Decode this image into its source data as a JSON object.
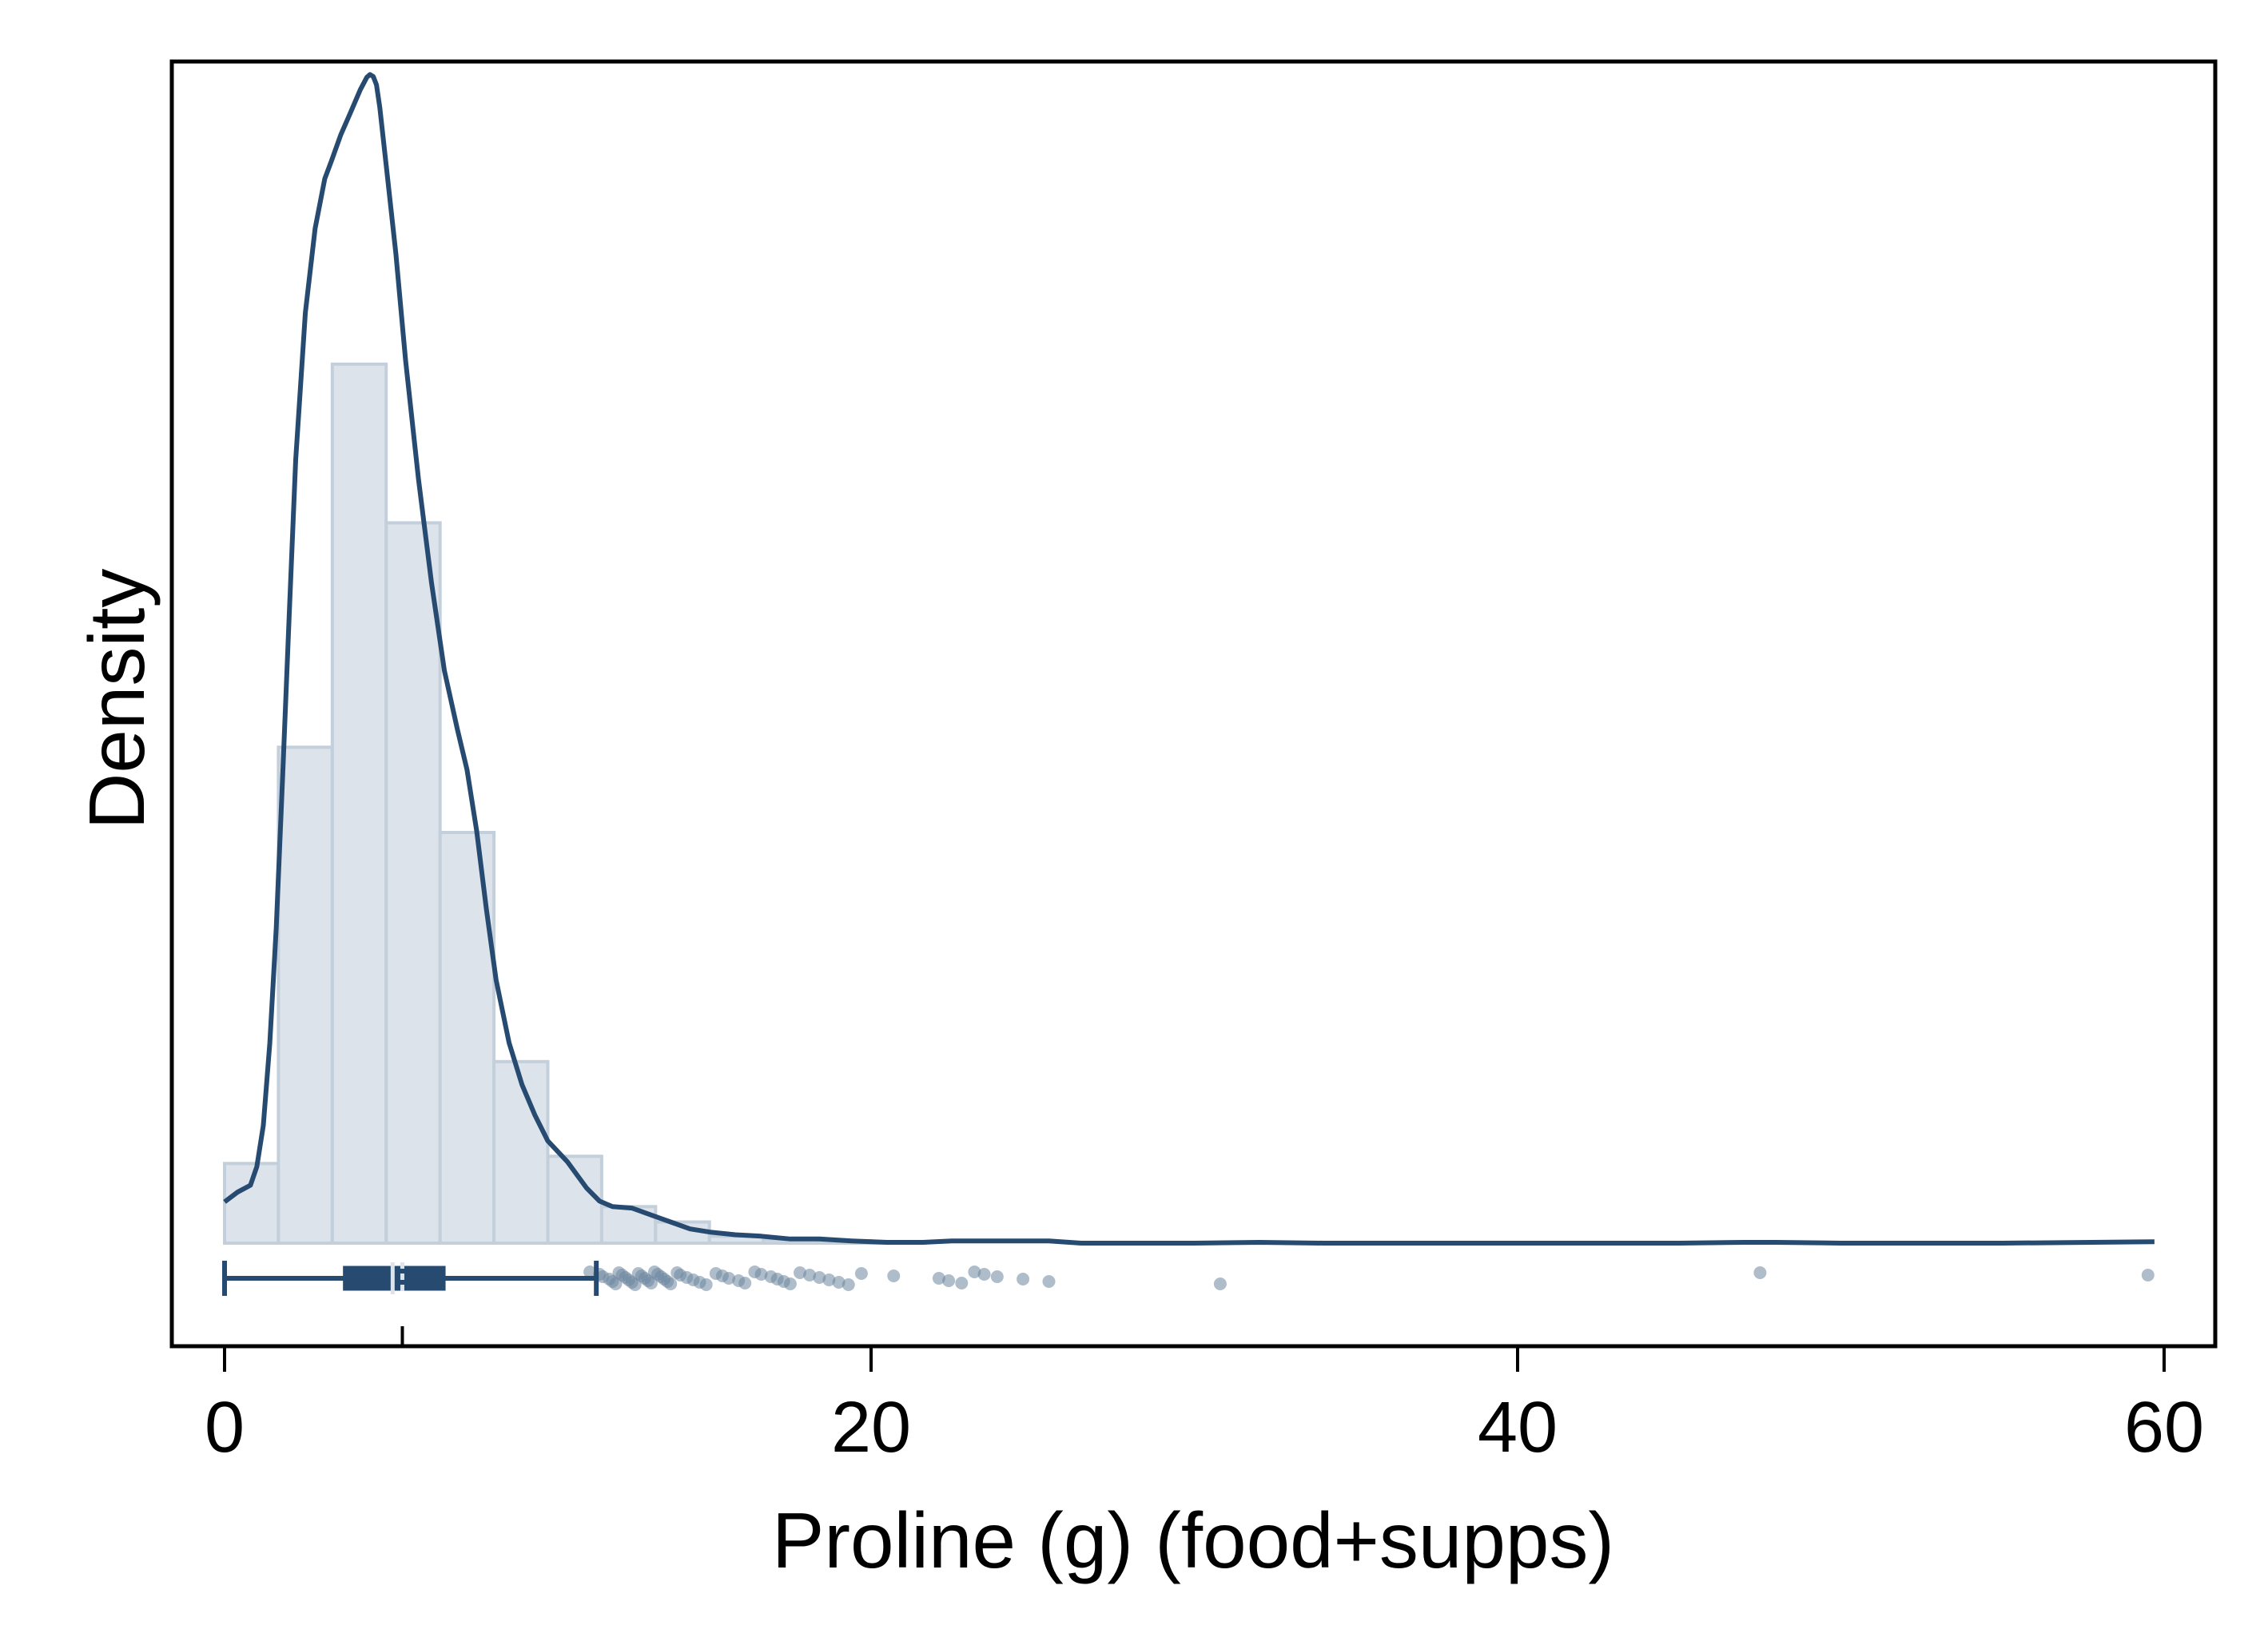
{
  "chart_data": {
    "type": "histogram",
    "xlabel": "Proline (g) (food+supps)",
    "ylabel": "Density",
    "xlim": [
      -0.8,
      61.5
    ],
    "x_ticks": [
      0,
      20,
      40,
      60
    ],
    "x_tick_labels": [
      "0",
      "20",
      "40",
      "60"
    ],
    "y_ticks_shown": false,
    "grid": false,
    "colors": {
      "bar_fill": "#dce3ea",
      "bar_stroke": "#c3cfda",
      "line": "#274b70",
      "outlier": "#6d87a1"
    },
    "histogram": {
      "bin_width": 1.667,
      "bins": [
        {
          "x0": 0.0,
          "x1": 1.667,
          "density": 0.0286
        },
        {
          "x0": 1.667,
          "x1": 3.333,
          "density": 0.1781
        },
        {
          "x0": 3.333,
          "x1": 5.0,
          "density": 0.3157
        },
        {
          "x0": 5.0,
          "x1": 6.667,
          "density": 0.2587
        },
        {
          "x0": 6.667,
          "x1": 8.333,
          "density": 0.1475
        },
        {
          "x0": 8.333,
          "x1": 10.0,
          "density": 0.0652
        },
        {
          "x0": 10.0,
          "x1": 11.667,
          "density": 0.0312
        },
        {
          "x0": 11.667,
          "x1": 13.333,
          "density": 0.0131
        },
        {
          "x0": 13.333,
          "x1": 15.0,
          "density": 0.0076
        },
        {
          "x0": 15.0,
          "x1": 16.667,
          "density": 0.0025
        },
        {
          "x0": 16.667,
          "x1": 18.333,
          "density": 0.0013
        },
        {
          "x0": 18.333,
          "x1": 20.0,
          "density": 0.0008
        },
        {
          "x0": 20.0,
          "x1": 21.667,
          "density": 0.0004
        }
      ]
    },
    "kde": {
      "x": [
        0.0,
        0.4,
        0.8,
        1.0,
        1.2,
        1.4,
        1.6,
        1.8,
        2.0,
        2.2,
        2.5,
        2.8,
        3.1,
        3.3,
        3.6,
        3.9,
        4.2,
        4.4,
        4.5,
        4.6,
        4.7,
        4.8,
        5.0,
        5.3,
        5.6,
        6.0,
        6.4,
        6.8,
        7.2,
        7.5,
        7.8,
        8.1,
        8.4,
        8.8,
        9.2,
        9.6,
        10.0,
        10.6,
        11.2,
        11.6,
        12.0,
        12.6,
        13.2,
        13.8,
        14.4,
        15.0,
        15.8,
        16.6,
        17.5,
        18.4,
        19.4,
        20.5,
        21.6,
        22.5,
        23.5,
        24.5,
        25.5,
        26.5,
        28.0,
        30.0,
        32.0,
        34.0,
        36.0,
        40.0,
        45.0,
        47.0,
        48.0,
        50.0,
        55.0,
        59.7
      ],
      "y": [
        0.0148,
        0.0183,
        0.0208,
        0.0275,
        0.0423,
        0.0718,
        0.1134,
        0.1685,
        0.2256,
        0.2813,
        0.3342,
        0.3644,
        0.3823,
        0.3885,
        0.3982,
        0.4062,
        0.4143,
        0.4187,
        0.4197,
        0.419,
        0.416,
        0.408,
        0.387,
        0.3553,
        0.3171,
        0.2743,
        0.2373,
        0.2056,
        0.1847,
        0.17,
        0.148,
        0.12,
        0.0945,
        0.072,
        0.057,
        0.046,
        0.0367,
        0.0293,
        0.0198,
        0.0151,
        0.0131,
        0.0126,
        0.0101,
        0.0076,
        0.0051,
        0.004,
        0.003,
        0.0025,
        0.0015,
        0.0015,
        0.0008,
        0.0003,
        0.0003,
        0.0008,
        0.0008,
        0.0008,
        0.0008,
        0.0,
        0.0,
        0.0,
        0.0003,
        0.0,
        0.0,
        0.0,
        0.0,
        0.0003,
        0.0003,
        0.0,
        0.0,
        0.0005
      ]
    },
    "boxplot": {
      "whisker_low": 0.0,
      "q1": 3.7,
      "median": 5.2,
      "mean": 5.5,
      "q3": 6.8,
      "whisker_high": 11.5,
      "outliers": [
        11.3,
        11.6,
        11.7,
        11.9,
        12.0,
        12.1,
        12.2,
        12.3,
        12.4,
        12.5,
        12.6,
        12.7,
        12.8,
        12.9,
        13.0,
        13.1,
        13.2,
        13.3,
        13.4,
        13.5,
        13.6,
        13.7,
        13.8,
        14.0,
        14.1,
        14.3,
        14.5,
        14.7,
        14.9,
        15.2,
        15.4,
        15.6,
        15.9,
        16.1,
        16.4,
        16.6,
        16.9,
        17.1,
        17.3,
        17.5,
        17.8,
        18.1,
        18.4,
        18.7,
        19.0,
        19.3,
        19.7,
        20.7,
        22.1,
        22.4,
        22.8,
        23.2,
        23.5,
        23.9,
        24.7,
        25.5,
        30.8,
        47.5,
        59.5
      ]
    }
  }
}
